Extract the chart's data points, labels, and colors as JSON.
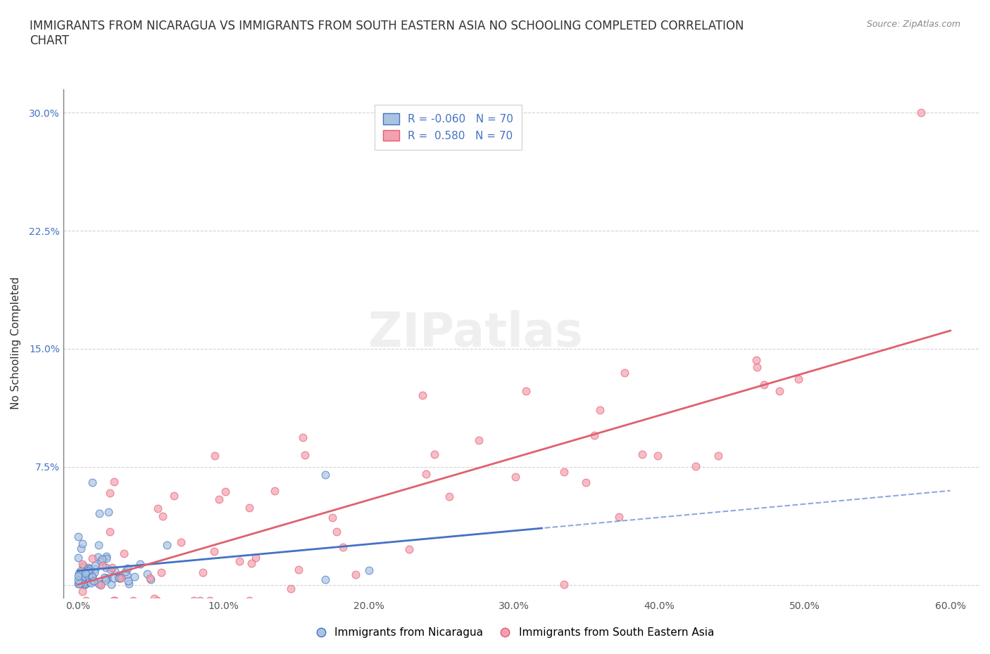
{
  "title": "IMMIGRANTS FROM NICARAGUA VS IMMIGRANTS FROM SOUTH EASTERN ASIA NO SCHOOLING COMPLETED CORRELATION\nCHART",
  "source": "Source: ZipAtlas.com",
  "xlabel_blue": "Immigrants from Nicaragua",
  "xlabel_pink": "Immigrants from South Eastern Asia",
  "ylabel": "No Schooling Completed",
  "xlim": [
    -0.01,
    0.62
  ],
  "ylim": [
    -0.008,
    0.315
  ],
  "xticks": [
    0.0,
    0.1,
    0.2,
    0.3,
    0.4,
    0.5,
    0.6
  ],
  "xticklabels": [
    "0.0%",
    "10.0%",
    "20.0%",
    "30.0%",
    "40.0%",
    "50.0%",
    "60.0%"
  ],
  "yticks": [
    0.0,
    0.075,
    0.15,
    0.225,
    0.3
  ],
  "yticklabels": [
    "",
    "7.5%",
    "15.0%",
    "22.5%",
    "30.0%"
  ],
  "blue_R": -0.06,
  "blue_N": 70,
  "pink_R": 0.58,
  "pink_N": 70,
  "blue_color": "#aac4e0",
  "pink_color": "#f4a0b0",
  "blue_line_color": "#4472c4",
  "pink_line_color": "#e06070",
  "watermark": "ZIPatlas"
}
